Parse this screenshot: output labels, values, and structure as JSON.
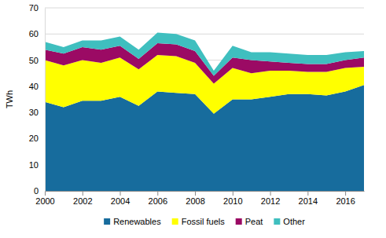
{
  "chart_data": {
    "type": "area",
    "stacked": true,
    "y_label": "TWh",
    "x": [
      2000,
      2001,
      2002,
      2003,
      2004,
      2005,
      2006,
      2007,
      2008,
      2009,
      2010,
      2011,
      2012,
      2013,
      2014,
      2015,
      2016,
      2017
    ],
    "xlim": [
      2000,
      2017
    ],
    "xticks": [
      2000,
      2002,
      2004,
      2006,
      2008,
      2010,
      2012,
      2014,
      2016
    ],
    "ylim": [
      0,
      70
    ],
    "yticks": [
      0,
      10,
      20,
      30,
      40,
      50,
      60,
      70
    ],
    "grid": true,
    "legend": "bottom",
    "series": [
      {
        "name": "Renewables",
        "color": "#176c9d",
        "values": [
          34,
          32,
          34.5,
          34.5,
          36,
          32.5,
          38,
          37.5,
          37,
          29.5,
          35,
          35,
          36,
          37,
          37,
          36.5,
          38,
          40.5
        ]
      },
      {
        "name": "Fossil fuels",
        "color": "#ffff00",
        "values": [
          16,
          16,
          15.5,
          14.5,
          15,
          14,
          14,
          14,
          12,
          11.5,
          12,
          10,
          10,
          9,
          8.5,
          9,
          9,
          7
        ]
      },
      {
        "name": "Peat",
        "color": "#9b0a64",
        "values": [
          4,
          4.5,
          5,
          5,
          4.5,
          4,
          4.5,
          4.5,
          4.5,
          3,
          4,
          5,
          3.5,
          3,
          3,
          3,
          3,
          3.5
        ]
      },
      {
        "name": "Other",
        "color": "#3fbfbf",
        "values": [
          3,
          2.5,
          2.5,
          3.5,
          3.5,
          3.5,
          4,
          4,
          4,
          2,
          4.5,
          3,
          3.5,
          3.5,
          3.5,
          3.5,
          3,
          2.5
        ]
      }
    ]
  }
}
